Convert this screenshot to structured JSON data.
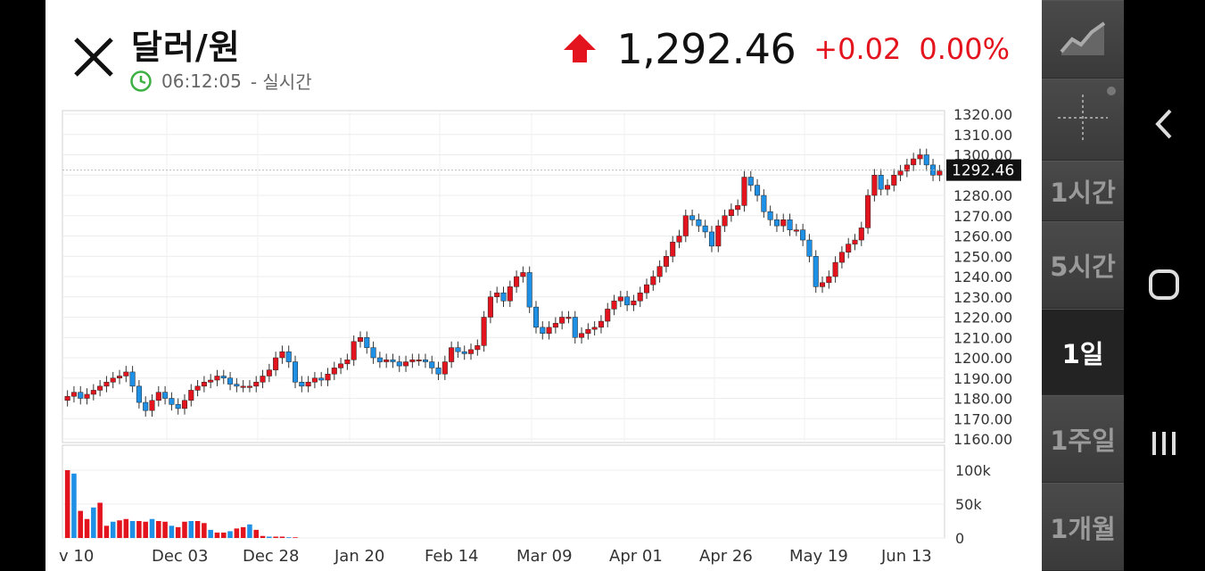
{
  "header": {
    "title": "달러/원",
    "time": "06:12:05",
    "time_suffix": "- 실시간",
    "price": "1,292.46",
    "change": "+0.02",
    "change_pct": "0.00%",
    "up_color": "#e3141d"
  },
  "sidebar": {
    "items": [
      {
        "name": "line-chart-icon",
        "label": ""
      },
      {
        "name": "crosshair-icon",
        "label": ""
      },
      {
        "name": "interval-1h",
        "label": "1시간"
      },
      {
        "name": "interval-5h",
        "label": "5시간"
      },
      {
        "name": "interval-1d",
        "label": "1일",
        "active": true
      },
      {
        "name": "interval-1w",
        "label": "1주일"
      },
      {
        "name": "interval-1m",
        "label": "1개월"
      }
    ]
  },
  "chart_data": {
    "type": "candlestick",
    "current_price_label": "1292.46",
    "current_price": 1292.46,
    "ylim": [
      1160,
      1320
    ],
    "y_ticks": [
      "1320.00",
      "1310.00",
      "1300.00",
      "1290.00",
      "1280.00",
      "1270.00",
      "1260.00",
      "1250.00",
      "1240.00",
      "1230.00",
      "1220.00",
      "1210.00",
      "1200.00",
      "1190.00",
      "1180.00",
      "1170.00",
      "1160.00"
    ],
    "x_ticks": [
      "v 10",
      "Dec 03",
      "Dec 28",
      "Jan 20",
      "Feb 14",
      "Mar 09",
      "Apr 01",
      "Apr 26",
      "May 19",
      "Jun 13"
    ],
    "volume_ticks": [
      "100k",
      "50k",
      "0"
    ],
    "volume_max": 100000,
    "up_color": "#e3141d",
    "down_color": "#1e90e6",
    "closes": [
      1181,
      1183,
      1180,
      1182,
      1184,
      1186,
      1188,
      1190,
      1191,
      1193,
      1186,
      1178,
      1174,
      1179,
      1183,
      1180,
      1177,
      1175,
      1179,
      1184,
      1186,
      1188,
      1189,
      1191,
      1190,
      1187,
      1186,
      1186,
      1186,
      1188,
      1191,
      1194,
      1200,
      1203,
      1198,
      1188,
      1186,
      1188,
      1190,
      1189,
      1192,
      1195,
      1197,
      1199,
      1208,
      1210,
      1205,
      1200,
      1198,
      1199,
      1198,
      1196,
      1198,
      1199,
      1199,
      1198,
      1195,
      1192,
      1198,
      1205,
      1203,
      1202,
      1204,
      1206,
      1220,
      1230,
      1232,
      1228,
      1235,
      1240,
      1242,
      1225,
      1215,
      1212,
      1215,
      1217,
      1220,
      1220,
      1210,
      1212,
      1214,
      1215,
      1218,
      1224,
      1228,
      1230,
      1226,
      1228,
      1232,
      1236,
      1240,
      1245,
      1250,
      1257,
      1260,
      1270,
      1268,
      1265,
      1262,
      1255,
      1265,
      1270,
      1273,
      1275,
      1289,
      1285,
      1280,
      1272,
      1268,
      1265,
      1268,
      1263,
      1263,
      1258,
      1250,
      1235,
      1237,
      1240,
      1247,
      1252,
      1256,
      1258,
      1264,
      1280,
      1290,
      1283,
      1285,
      1290,
      1292,
      1295,
      1298,
      1300,
      1295,
      1290,
      1292
    ],
    "volumes": [
      100,
      95,
      40,
      28,
      45,
      52,
      18,
      24,
      26,
      28,
      25,
      25,
      24,
      28,
      25,
      24,
      18,
      16,
      24,
      25,
      25,
      22,
      12,
      8,
      8,
      10,
      14,
      16,
      20,
      12,
      3,
      2,
      2,
      2,
      1,
      1
    ]
  }
}
